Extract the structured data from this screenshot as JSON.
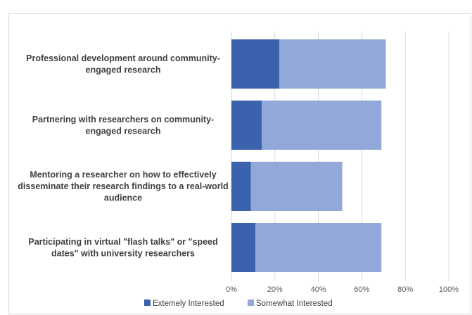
{
  "colors": {
    "series1": "#3a62ad",
    "series2": "#91a8d8",
    "grid": "#d9d9d9",
    "text": "#404040"
  },
  "chart_data": {
    "type": "bar",
    "orientation": "horizontal",
    "stacked": true,
    "categories": [
      [
        "Professional development around community-",
        "engaged research"
      ],
      [
        "Partnering with researchers on community-",
        "engaged research"
      ],
      [
        "Mentoring a researcher on how to effectively",
        "disseminate their research findings to a real-world",
        "audience"
      ],
      [
        "Participating in virtual \"flash talks\" or \"speed",
        "dates\" with university researchers"
      ]
    ],
    "series": [
      {
        "name": "Extemely Interested",
        "values": [
          22,
          14,
          9,
          11
        ]
      },
      {
        "name": "Somewhat Interested",
        "values": [
          49,
          55,
          42,
          58
        ]
      }
    ],
    "xlim": [
      0,
      100
    ],
    "xticks": [
      "0%",
      "20%",
      "40%",
      "60%",
      "80%",
      "100%"
    ],
    "grid": true,
    "legend": "bottom"
  }
}
